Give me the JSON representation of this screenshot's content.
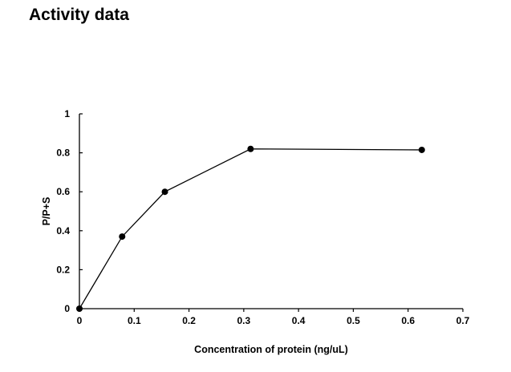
{
  "title": "Activity data",
  "chart_data": {
    "type": "line",
    "title": "",
    "xlabel": "Concentration of protein (ng/uL)",
    "ylabel": "P/P+S",
    "xlim": [
      0,
      0.7
    ],
    "ylim": [
      0,
      1
    ],
    "x_ticks": [
      "0",
      "0.1",
      "0.2",
      "0.3",
      "0.4",
      "0.5",
      "0.6",
      "0.7"
    ],
    "y_ticks": [
      "0",
      "0.2",
      "0.4",
      "0.6",
      "0.8",
      "1"
    ],
    "grid": false,
    "legend": "none",
    "series": [
      {
        "x": [
          0,
          0.078,
          0.156,
          0.3125,
          0.625
        ],
        "y": [
          0,
          0.37,
          0.6,
          0.82,
          0.815
        ],
        "color": "#000000",
        "marker": "circle"
      }
    ]
  }
}
